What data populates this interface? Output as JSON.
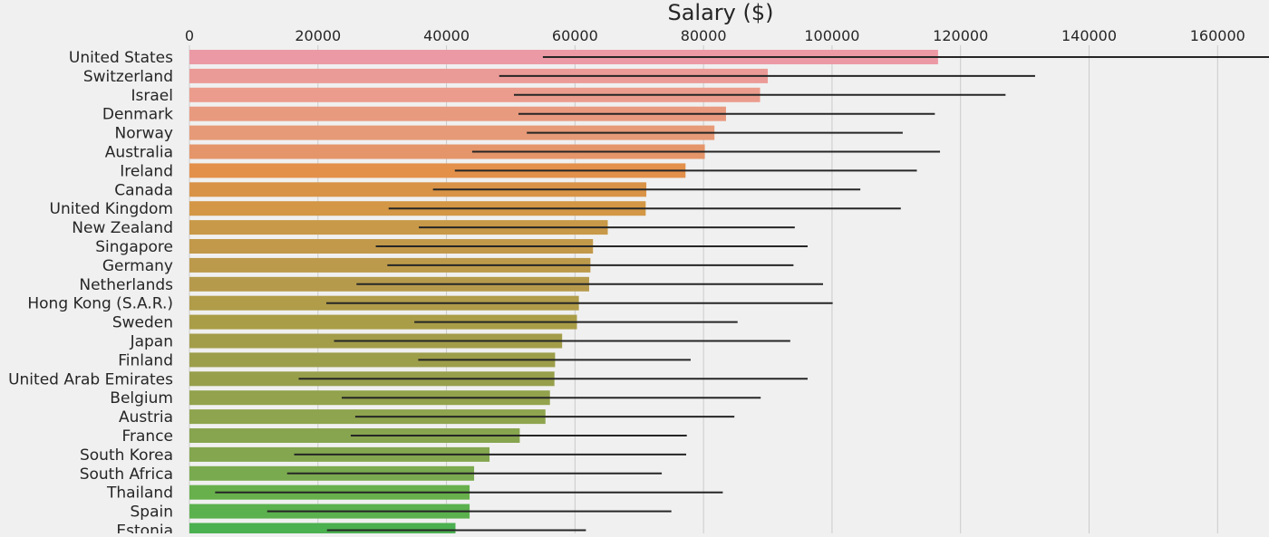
{
  "chart_data": {
    "type": "bar",
    "orientation": "horizontal",
    "title": "Salary ($)",
    "xlabel": "",
    "ylabel": "",
    "xlim": [
      0,
      168000
    ],
    "x_ticks": [
      0,
      20000,
      40000,
      60000,
      80000,
      100000,
      120000,
      140000,
      160000
    ],
    "grid": true,
    "categories": [
      "United States",
      "Switzerland",
      "Israel",
      "Denmark",
      "Norway",
      "Australia",
      "Ireland",
      "Canada",
      "United Kingdom",
      "New Zealand",
      "Singapore",
      "Germany",
      "Netherlands",
      "Hong Kong (S.A.R.)",
      "Sweden",
      "Japan",
      "Finland",
      "United Arab Emirates",
      "Belgium",
      "Austria",
      "France",
      "South Korea",
      "South Africa",
      "Thailand",
      "Spain",
      "Estonia"
    ],
    "values": [
      116500,
      90000,
      88800,
      83500,
      81700,
      80200,
      77200,
      71100,
      71000,
      65100,
      62800,
      62400,
      62200,
      60600,
      60300,
      58000,
      56900,
      56800,
      56100,
      55400,
      51400,
      46700,
      44300,
      43600,
      43600,
      41400
    ],
    "error_low": [
      55000,
      48200,
      50500,
      51200,
      52500,
      44000,
      41300,
      37900,
      31000,
      35700,
      29000,
      30800,
      26000,
      21300,
      35000,
      22500,
      35600,
      17000,
      23700,
      25800,
      25100,
      16300,
      15200,
      4000,
      12100,
      21400
    ],
    "error_high": [
      168000,
      131600,
      127000,
      116000,
      111000,
      116800,
      113200,
      104400,
      110700,
      94200,
      96200,
      94000,
      98600,
      100100,
      85300,
      93500,
      78000,
      96200,
      88900,
      84800,
      77400,
      77300,
      73500,
      83000,
      75000,
      61700
    ],
    "bar_colors": [
      "#eb9aa5",
      "#eb9b97",
      "#eb9c8c",
      "#e89a7f",
      "#e69a77",
      "#e5956a",
      "#e3904a",
      "#d99346",
      "#d39745",
      "#c89948",
      "#c2994a",
      "#bc9a4b",
      "#b69a4c",
      "#b09c49",
      "#a99d47",
      "#a39d49",
      "#9d9e4a",
      "#979f4b",
      "#92a24d",
      "#8ea44e",
      "#87a44f",
      "#83a64f",
      "#7aaa4f",
      "#68b04c",
      "#5bb14d",
      "#4bb050"
    ],
    "error_color": "#262626"
  }
}
